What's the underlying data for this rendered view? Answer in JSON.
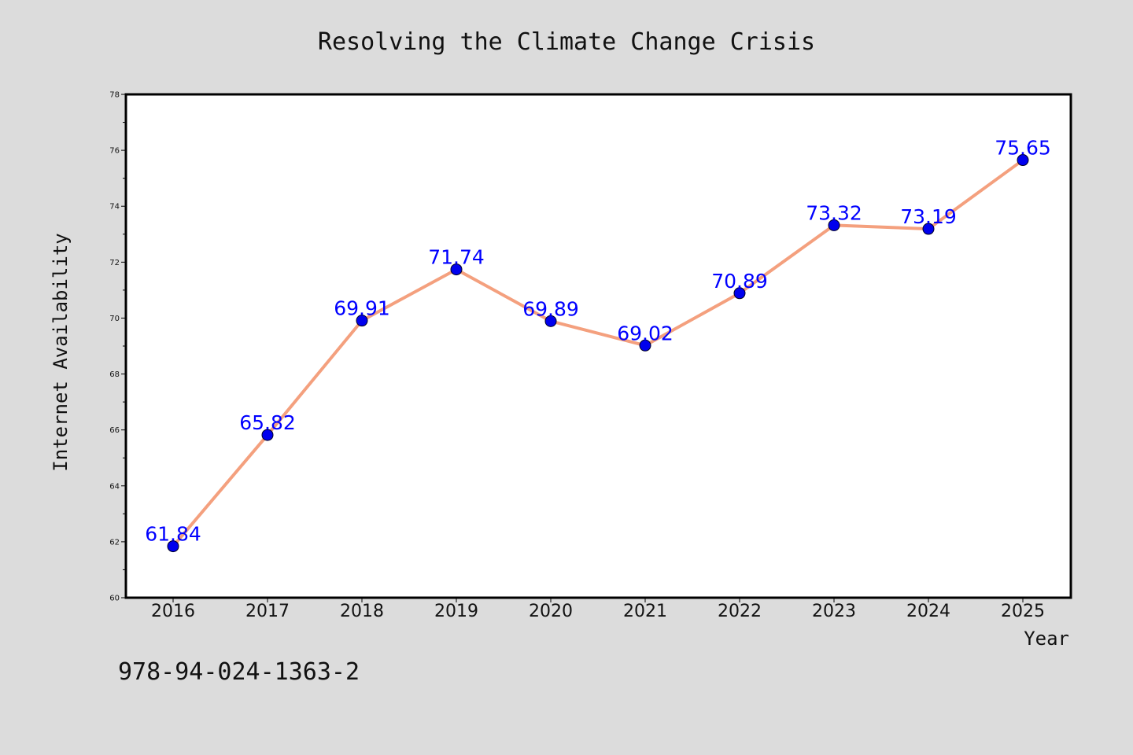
{
  "chart_data": {
    "type": "line",
    "title": "Resolving the Climate Change Crisis",
    "xlabel": "Year",
    "ylabel": "Internet Availability",
    "categories": [
      "2016",
      "2017",
      "2018",
      "2019",
      "2020",
      "2021",
      "2022",
      "2023",
      "2024",
      "2025"
    ],
    "values": [
      61.84,
      65.82,
      69.91,
      71.74,
      69.89,
      69.02,
      70.89,
      73.32,
      73.19,
      75.65
    ],
    "data_labels": [
      "61.84",
      "65.82",
      "69.91",
      "71.74",
      "69.89",
      "69.02",
      "70.89",
      "73.32",
      "73.19",
      "75.65"
    ],
    "ylim": [
      60,
      78
    ],
    "y_ticks": [
      60,
      62,
      64,
      66,
      68,
      70,
      72,
      74,
      76,
      78
    ],
    "grid": false,
    "line_color": "#f4a07e",
    "marker_color": "#0000ee",
    "label_color": "#0000ff",
    "plot_background": "#ffffff",
    "figure_background": "#dcdcdc"
  },
  "footer": {
    "code": "978-94-024-1363-2"
  }
}
